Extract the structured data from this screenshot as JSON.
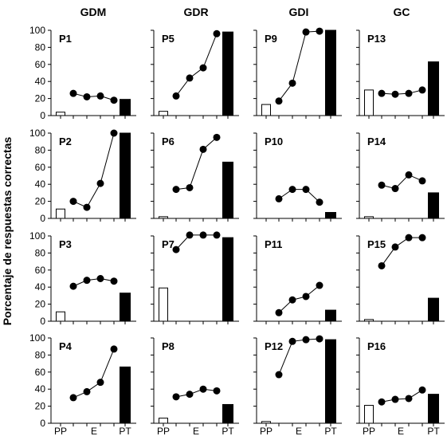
{
  "figure": {
    "ylabel": "Porcentaje de respuestas correctas",
    "x_tick_labels": [
      "PP",
      "E",
      "PT"
    ],
    "y_ticks": [
      0,
      20,
      40,
      60,
      80,
      100
    ],
    "group_labels": [
      "GDM",
      "GDR",
      "GDI",
      "GC"
    ]
  },
  "chart_data": [
    {
      "type": "bar+line",
      "group": "GDM",
      "panel": "P1",
      "pp": 4,
      "e": [
        26,
        22,
        23,
        18
      ],
      "pt": 19,
      "ylim": [
        0,
        100
      ]
    },
    {
      "type": "bar+line",
      "group": "GDR",
      "panel": "P5",
      "pp": 5,
      "e": [
        23,
        44,
        56,
        96
      ],
      "pt": 98,
      "ylim": [
        0,
        100
      ]
    },
    {
      "type": "bar+line",
      "group": "GDI",
      "panel": "P9",
      "pp": 13,
      "e": [
        17,
        38,
        98,
        99
      ],
      "pt": 100,
      "ylim": [
        0,
        100
      ]
    },
    {
      "type": "bar+line",
      "group": "GC",
      "panel": "P13",
      "pp": 30,
      "e": [
        26,
        25,
        26,
        30
      ],
      "pt": 63,
      "ylim": [
        0,
        100
      ]
    },
    {
      "type": "bar+line",
      "group": "GDM",
      "panel": "P2",
      "pp": 11,
      "e": [
        20,
        13,
        41,
        100
      ],
      "pt": 100,
      "ylim": [
        0,
        100
      ]
    },
    {
      "type": "bar+line",
      "group": "GDR",
      "panel": "P6",
      "pp": 2,
      "e": [
        34,
        36,
        81,
        95
      ],
      "pt": 66,
      "ylim": [
        0,
        100
      ]
    },
    {
      "type": "bar+line",
      "group": "GDI",
      "panel": "P10",
      "pp": 0,
      "e": [
        23,
        34,
        34,
        19
      ],
      "pt": 7,
      "ylim": [
        0,
        100
      ]
    },
    {
      "type": "bar+line",
      "group": "GC",
      "panel": "P14",
      "pp": 2,
      "e": [
        39,
        35,
        51,
        44
      ],
      "pt": 30,
      "ylim": [
        0,
        100
      ]
    },
    {
      "type": "bar+line",
      "group": "GDM",
      "panel": "P3",
      "pp": 11,
      "e": [
        41,
        48,
        50,
        47
      ],
      "pt": 33,
      "ylim": [
        0,
        100
      ]
    },
    {
      "type": "bar+line",
      "group": "GDR",
      "panel": "P7",
      "pp": 39,
      "e": [
        84,
        101,
        101,
        101
      ],
      "pt": 98,
      "ylim": [
        0,
        100
      ]
    },
    {
      "type": "bar+line",
      "group": "GDI",
      "panel": "P11",
      "pp": 0,
      "e": [
        10,
        25,
        29,
        42
      ],
      "pt": 13,
      "ylim": [
        0,
        100
      ]
    },
    {
      "type": "bar+line",
      "group": "GC",
      "panel": "P15",
      "pp": 2,
      "e": [
        65,
        87,
        98,
        98
      ],
      "pt": 27,
      "ylim": [
        0,
        100
      ]
    },
    {
      "type": "bar+line",
      "group": "GDM",
      "panel": "P4",
      "pp": 0,
      "e": [
        30,
        37,
        48,
        87
      ],
      "pt": 66,
      "ylim": [
        0,
        100
      ]
    },
    {
      "type": "bar+line",
      "group": "GDR",
      "panel": "P8",
      "pp": 6,
      "e": [
        31,
        34,
        40,
        38
      ],
      "pt": 22,
      "ylim": [
        0,
        100
      ]
    },
    {
      "type": "bar+line",
      "group": "GDI",
      "panel": "P12",
      "pp": 2,
      "e": [
        57,
        96,
        98,
        99
      ],
      "pt": 98,
      "ylim": [
        0,
        100
      ]
    },
    {
      "type": "bar+line",
      "group": "GC",
      "panel": "P16",
      "pp": 21,
      "e": [
        25,
        28,
        29,
        39
      ],
      "pt": 34,
      "ylim": [
        0,
        100
      ]
    }
  ]
}
